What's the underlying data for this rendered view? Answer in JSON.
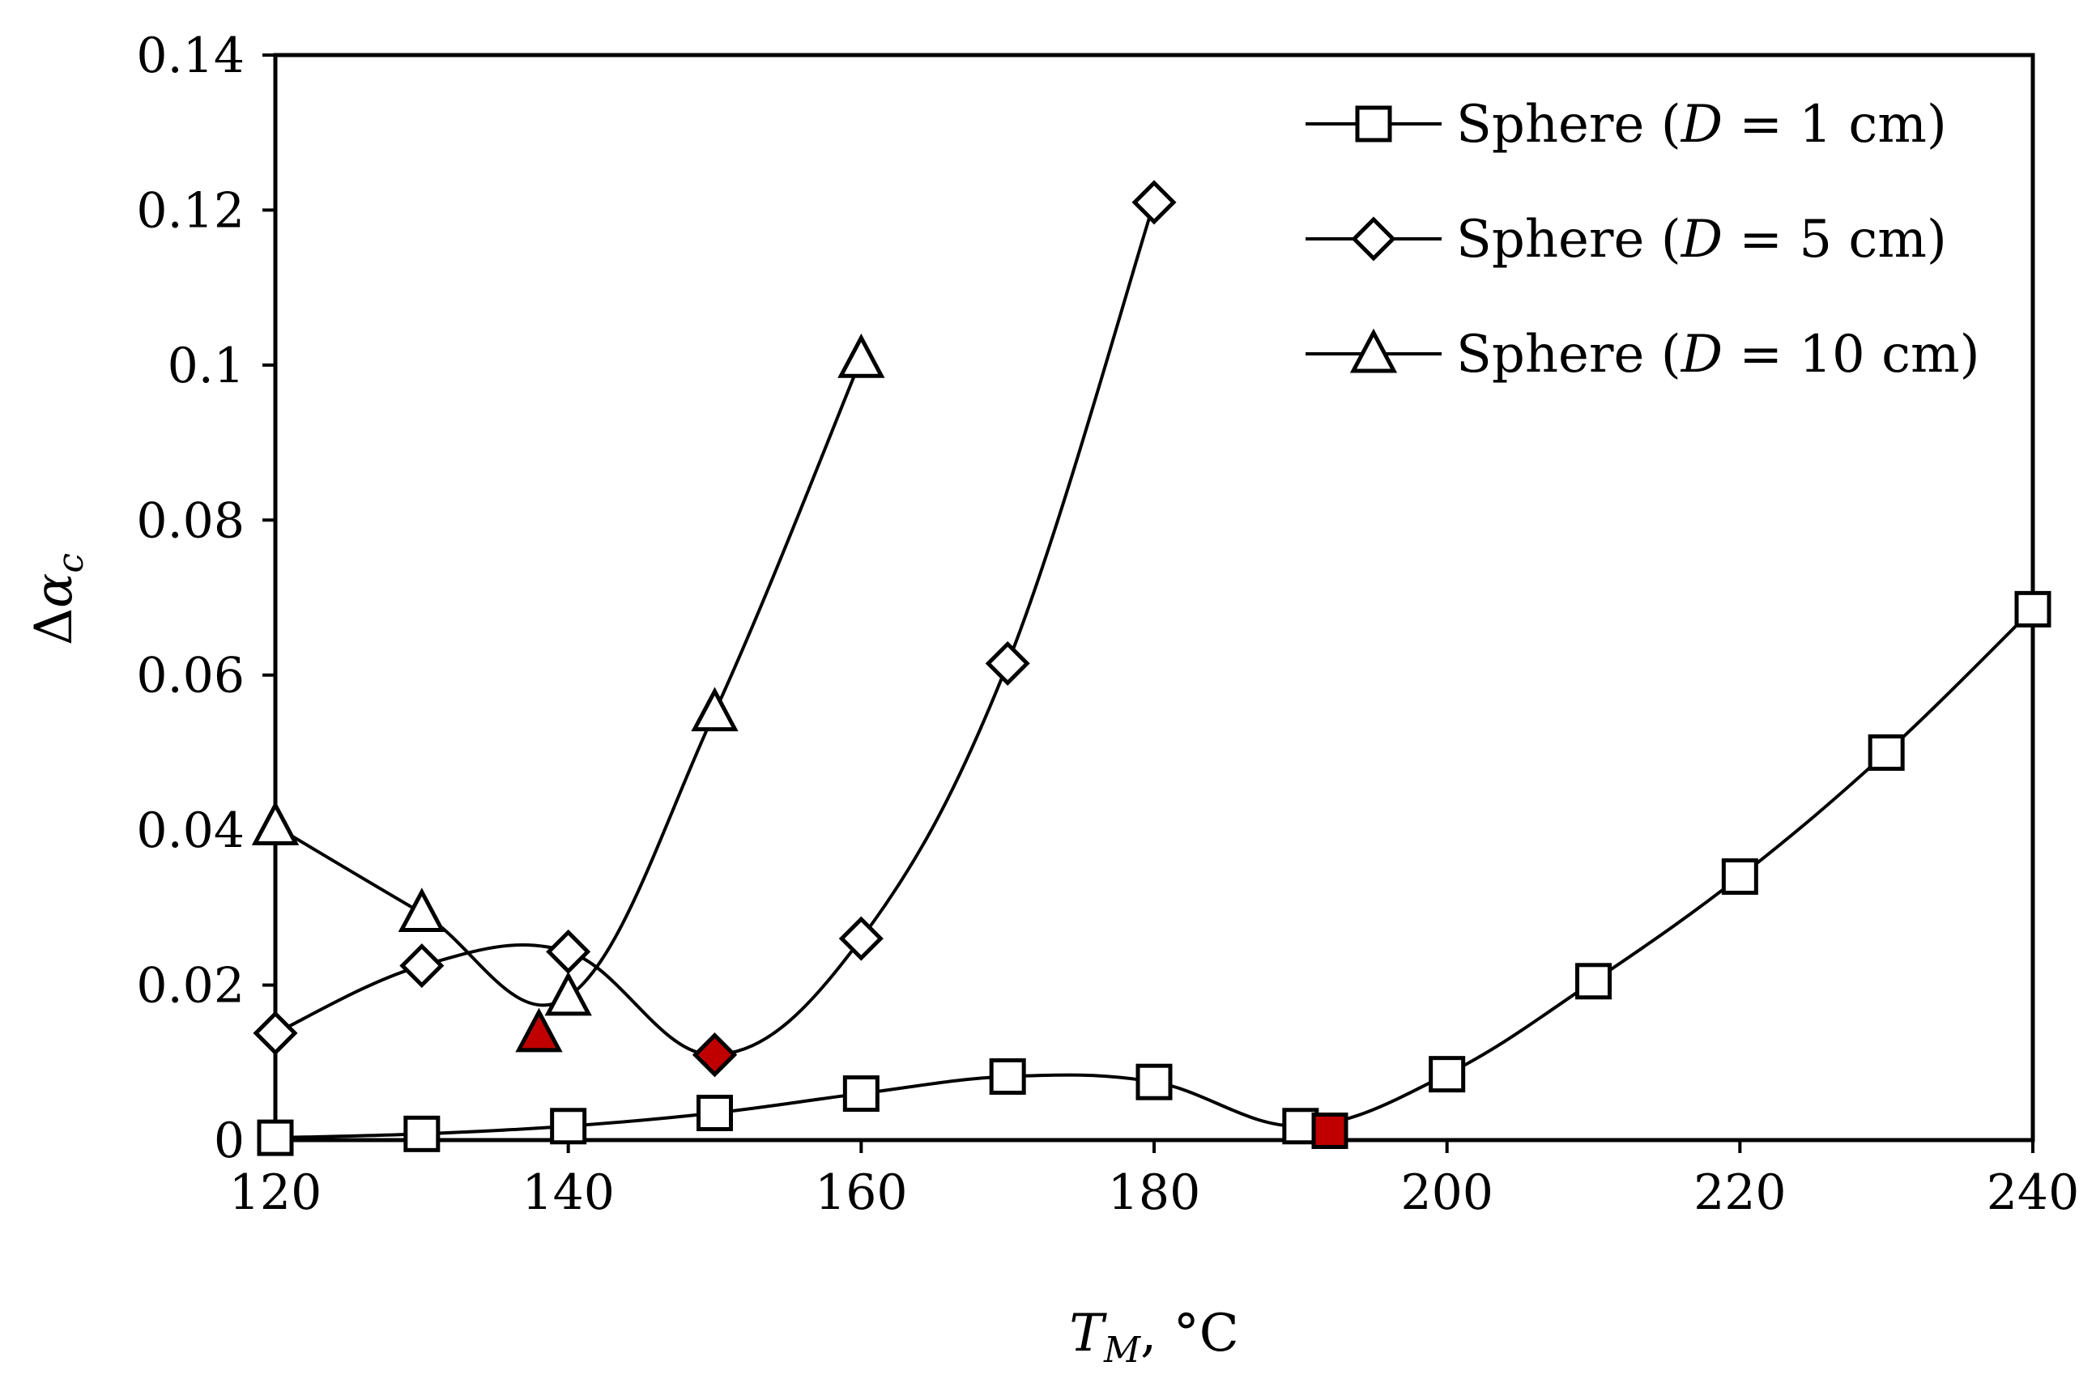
{
  "chart_data": {
    "type": "line",
    "title": "",
    "xlabel": {
      "var": "T",
      "sub": "M",
      "unit": ", °C"
    },
    "ylabel": {
      "prefix": "Δ",
      "var": "α",
      "sub": "c"
    },
    "xlim": [
      120,
      240
    ],
    "ylim": [
      0,
      0.14
    ],
    "xticks": [
      120,
      140,
      160,
      180,
      200,
      220,
      240
    ],
    "xtick_labels": [
      "120",
      "140",
      "160",
      "180",
      "200",
      "220",
      "240"
    ],
    "yticks": [
      0,
      0.02,
      0.04,
      0.06,
      0.08,
      0.1,
      0.12,
      0.14
    ],
    "ytick_labels": [
      "0",
      "0.02",
      "0.04",
      "0.06",
      "0.08",
      "0.1",
      "0.12",
      "0.14"
    ],
    "grid": false,
    "legend_position": "top-right",
    "series": [
      {
        "name": "Sphere (D = 1 cm)",
        "legend": {
          "prefix": "Sphere (",
          "var": "D",
          "suffix": " = 1 cm)"
        },
        "marker": "square",
        "x": [
          120,
          130,
          140,
          150,
          160,
          170,
          180,
          190,
          200,
          210,
          220,
          230,
          240
        ],
        "y": [
          0.0003,
          0.0008,
          0.0018,
          0.0035,
          0.006,
          0.0082,
          0.0075,
          0.0018,
          0.0085,
          0.0205,
          0.034,
          0.05,
          0.0685
        ],
        "highlight": {
          "x": 192,
          "y": 0.0012
        }
      },
      {
        "name": "Sphere (D = 5 cm)",
        "legend": {
          "prefix": "Sphere (",
          "var": "D",
          "suffix": " = 5 cm)"
        },
        "marker": "diamond",
        "x": [
          120,
          130,
          140,
          150,
          160,
          170,
          180
        ],
        "y": [
          0.0138,
          0.0225,
          0.0243,
          0.011,
          0.026,
          0.0615,
          0.121
        ],
        "highlight": {
          "x": 150,
          "y": 0.011
        }
      },
      {
        "name": "Sphere (D = 10 cm)",
        "legend": {
          "prefix": "Sphere (",
          "var": "D",
          "suffix": " = 10 cm)"
        },
        "marker": "triangle",
        "x": [
          120,
          130,
          140,
          150,
          160
        ],
        "y": [
          0.0405,
          0.0293,
          0.0185,
          0.0552,
          0.1008
        ],
        "highlight": {
          "x": 138,
          "y": 0.0138
        }
      }
    ],
    "colors": {
      "line": "#000000",
      "marker_fill": "#ffffff",
      "highlight": "#c00000"
    }
  }
}
